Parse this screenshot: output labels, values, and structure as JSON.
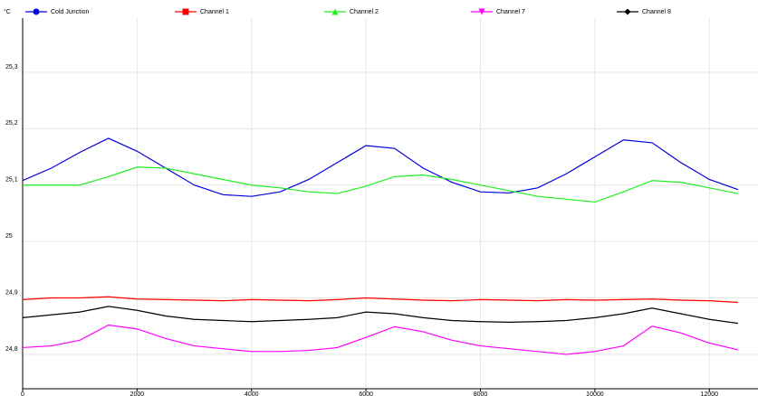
{
  "chart_data": {
    "type": "line",
    "title": "°C",
    "x": [
      0,
      500,
      1000,
      1500,
      2000,
      2500,
      3000,
      3500,
      4000,
      4500,
      5000,
      5500,
      6000,
      6500,
      7000,
      7500,
      8000,
      8500,
      9000,
      9500,
      10000,
      10500,
      11000,
      11500,
      12000,
      12500
    ],
    "xlim": [
      0,
      12850
    ],
    "ylim": [
      24.739,
      25.396
    ],
    "xticks": [
      0,
      2000,
      4000,
      6000,
      8000,
      10000,
      12000
    ],
    "yticks": [
      {
        "value": 24.8,
        "label": "24,8"
      },
      {
        "value": 24.9,
        "label": "24,9"
      },
      25,
      {
        "value": 25.1,
        "label": "25,1"
      },
      {
        "value": 25.2,
        "label": "25,2"
      },
      {
        "value": 25.3,
        "label": "25,3"
      }
    ],
    "grid": true,
    "legend": "top",
    "series": [
      {
        "name": "Cold Junction",
        "color": "#0000dd",
        "marker": "circle",
        "values": [
          25.108,
          25.13,
          25.158,
          25.183,
          25.16,
          25.13,
          25.1,
          25.083,
          25.08,
          25.088,
          25.11,
          25.14,
          25.17,
          25.165,
          25.13,
          25.105,
          25.088,
          25.086,
          25.095,
          25.12,
          25.15,
          25.18,
          25.175,
          25.14,
          25.11,
          25.092
        ]
      },
      {
        "name": "Channel 1",
        "color": "#ff0000",
        "marker": "square",
        "values": [
          24.897,
          24.9,
          24.9,
          24.902,
          24.898,
          24.897,
          24.896,
          24.895,
          24.897,
          24.896,
          24.895,
          24.897,
          24.9,
          24.898,
          24.896,
          24.895,
          24.897,
          24.896,
          24.895,
          24.897,
          24.896,
          24.897,
          24.898,
          24.896,
          24.895,
          24.892
        ]
      },
      {
        "name": "Channel 2",
        "color": "#22ee22",
        "marker": "triangle-up",
        "values": [
          25.1,
          25.1,
          25.1,
          25.115,
          25.132,
          25.13,
          25.12,
          25.11,
          25.1,
          25.095,
          25.088,
          25.085,
          25.098,
          25.115,
          25.118,
          25.11,
          25.1,
          25.09,
          25.08,
          25.075,
          25.07,
          25.088,
          25.108,
          25.105,
          25.095,
          25.085
        ]
      },
      {
        "name": "Channel 7",
        "color": "#ff00ff",
        "marker": "triangle-down",
        "values": [
          24.812,
          24.815,
          24.825,
          24.852,
          24.845,
          24.828,
          24.815,
          24.81,
          24.805,
          24.805,
          24.807,
          24.812,
          24.83,
          24.849,
          24.84,
          24.825,
          24.815,
          24.81,
          24.805,
          24.8,
          24.805,
          24.815,
          24.85,
          24.838,
          24.82,
          24.808
        ]
      },
      {
        "name": "Channel 8",
        "color": "#000000",
        "marker": "diamond",
        "values": [
          24.865,
          24.87,
          24.875,
          24.885,
          24.878,
          24.868,
          24.862,
          24.86,
          24.858,
          24.86,
          24.862,
          24.865,
          24.875,
          24.872,
          24.865,
          24.86,
          24.858,
          24.857,
          24.858,
          24.86,
          24.865,
          24.872,
          24.882,
          24.872,
          24.862,
          24.855
        ]
      }
    ]
  }
}
